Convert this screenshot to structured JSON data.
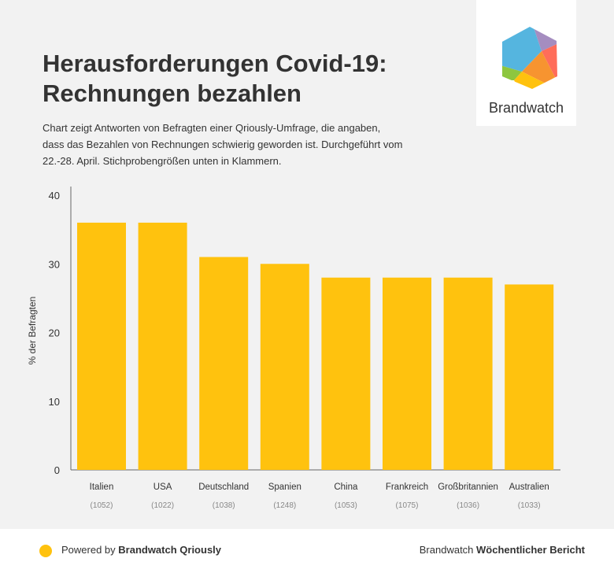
{
  "header": {
    "title_line1": "Herausforderungen Covid-19:",
    "title_line2": "Rechnungen bezahlen",
    "subtitle": "Chart zeigt Antworten von Befragten einer Qriously-Umfrage, die angaben, dass das Bezahlen von Rechnungen schwierig geworden ist. Durchgeführt vom 22.-28. April. Stichprobengrößen unten in Klammern."
  },
  "logo": {
    "text": "Brandwatch"
  },
  "footer": {
    "powered_prefix": "Powered by ",
    "powered_brand": "Brandwatch Qriously",
    "report_prefix": "Brandwatch ",
    "report_name": "Wöchentlicher Bericht"
  },
  "colors": {
    "bar": "#ffc20e",
    "accent": "#ffc20e"
  },
  "chart_data": {
    "type": "bar",
    "categories": [
      "Italien",
      "USA",
      "Deutschland",
      "Spanien",
      "China",
      "Frankreich",
      "Großbritannien",
      "Australien"
    ],
    "sample_sizes": [
      "(1052)",
      "(1022)",
      "(1038)",
      "(1248)",
      "(1053)",
      "(1075)",
      "(1036)",
      "(1033)"
    ],
    "values": [
      36,
      36,
      31,
      30,
      28,
      28,
      28,
      27
    ],
    "ylabel": "% der Befragten",
    "xlabel": "",
    "ylim": [
      0,
      40
    ],
    "yticks": [
      0,
      10,
      20,
      30,
      40
    ],
    "grid": false
  }
}
